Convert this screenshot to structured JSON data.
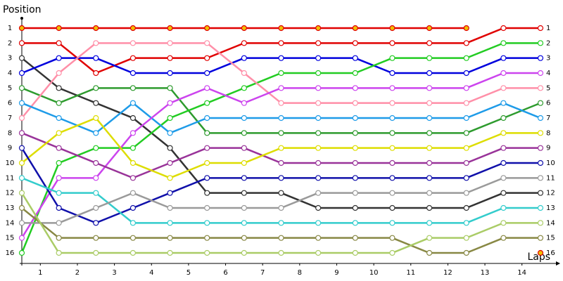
{
  "chart_data": {
    "type": "line",
    "x_title": "Laps",
    "y_title": "Position",
    "x": [
      0,
      1,
      2,
      3,
      4,
      5,
      6,
      7,
      8,
      9,
      10,
      11,
      12,
      13,
      14
    ],
    "xlim": [
      0,
      14
    ],
    "xticks": [
      {
        "value": 0.5,
        "label": "1"
      },
      {
        "value": 1.5,
        "label": "2"
      },
      {
        "value": 2.5,
        "label": "3"
      },
      {
        "value": 3.5,
        "label": "4"
      },
      {
        "value": 4.5,
        "label": "5"
      },
      {
        "value": 5.5,
        "label": "6"
      },
      {
        "value": 6.5,
        "label": "7"
      },
      {
        "value": 7.5,
        "label": "8"
      },
      {
        "value": 8.5,
        "label": "9"
      },
      {
        "value": 9.5,
        "label": "10"
      },
      {
        "value": 10.5,
        "label": "11"
      },
      {
        "value": 11.5,
        "label": "12"
      },
      {
        "value": 12.5,
        "label": "13"
      },
      {
        "value": 13.5,
        "label": "14"
      }
    ],
    "ylim": [
      1,
      16
    ],
    "y_reversed": true,
    "yticks": [
      1,
      2,
      3,
      4,
      5,
      6,
      7,
      8,
      9,
      10,
      11,
      12,
      13,
      14,
      15,
      16
    ],
    "grid": false,
    "series": [
      {
        "color": "#e00000",
        "marker_fill": "#f0c000",
        "values": [
          1,
          1,
          1,
          1,
          1,
          1,
          1,
          1,
          1,
          1,
          1,
          1,
          1,
          null,
          16
        ]
      },
      {
        "color": "#e00000",
        "marker_fill": "#ffffff",
        "values": [
          2,
          2,
          4,
          3,
          3,
          3,
          2,
          2,
          2,
          2,
          2,
          2,
          2,
          1,
          1
        ]
      },
      {
        "color": "#333333",
        "marker_fill": "#ffffff",
        "values": [
          3,
          5,
          6,
          7,
          9,
          12,
          12,
          12,
          13,
          13,
          13,
          13,
          13,
          12,
          12
        ]
      },
      {
        "color": "#0000dd",
        "marker_fill": "#ffffff",
        "values": [
          4,
          3,
          3,
          4,
          4,
          4,
          3,
          3,
          3,
          3,
          4,
          4,
          4,
          3,
          3
        ]
      },
      {
        "color": "#2e9b2e",
        "marker_fill": "#ffffff",
        "values": [
          5,
          6,
          5,
          5,
          5,
          8,
          8,
          8,
          8,
          8,
          8,
          8,
          8,
          7,
          6
        ]
      },
      {
        "color": "#22cc22",
        "marker_fill": "#ffffff",
        "values": [
          16,
          10,
          9,
          9,
          7,
          6,
          5,
          4,
          4,
          4,
          3,
          3,
          3,
          2,
          2
        ]
      },
      {
        "color": "#ff8fa8",
        "marker_fill": "#ffffff",
        "values": [
          7,
          4,
          2,
          2,
          2,
          2,
          4,
          6,
          6,
          6,
          6,
          6,
          6,
          5,
          5
        ]
      },
      {
        "color": "#1e9be8",
        "marker_fill": "#ffffff",
        "values": [
          6,
          7,
          8,
          6,
          8,
          7,
          7,
          7,
          7,
          7,
          7,
          7,
          7,
          6,
          7
        ]
      },
      {
        "color": "#cc44ee",
        "marker_fill": "#ffffff",
        "values": [
          15,
          11,
          11,
          8,
          6,
          5,
          6,
          5,
          5,
          5,
          5,
          5,
          5,
          4,
          4
        ]
      },
      {
        "color": "#993399",
        "marker_fill": "#ffffff",
        "values": [
          8,
          9,
          10,
          11,
          10,
          9,
          9,
          10,
          10,
          10,
          10,
          10,
          10,
          9,
          9
        ]
      },
      {
        "color": "#dddd00",
        "marker_fill": "#ffffff",
        "values": [
          10,
          8,
          7,
          10,
          11,
          10,
          10,
          9,
          9,
          9,
          9,
          9,
          9,
          8,
          8
        ]
      },
      {
        "color": "#1010aa",
        "marker_fill": "#ffffff",
        "values": [
          9,
          13,
          14,
          13,
          12,
          11,
          11,
          11,
          11,
          11,
          11,
          11,
          11,
          10,
          10
        ]
      },
      {
        "color": "#33cccc",
        "marker_fill": "#ffffff",
        "values": [
          11,
          12,
          12,
          14,
          14,
          14,
          14,
          14,
          14,
          14,
          14,
          14,
          14,
          13,
          13
        ]
      },
      {
        "color": "#9a9a9a",
        "marker_fill": "#ffffff",
        "values": [
          14,
          14,
          13,
          12,
          13,
          13,
          13,
          13,
          12,
          12,
          12,
          12,
          12,
          11,
          11
        ]
      },
      {
        "color": "#888844",
        "marker_fill": "#ffffff",
        "values": [
          13,
          15,
          15,
          15,
          15,
          15,
          15,
          15,
          15,
          15,
          15,
          16,
          16,
          15,
          15
        ]
      },
      {
        "color": "#aacc66",
        "marker_fill": "#ffffff",
        "values": [
          12,
          16,
          16,
          16,
          16,
          16,
          16,
          16,
          16,
          16,
          16,
          15,
          15,
          14,
          14
        ]
      }
    ]
  }
}
